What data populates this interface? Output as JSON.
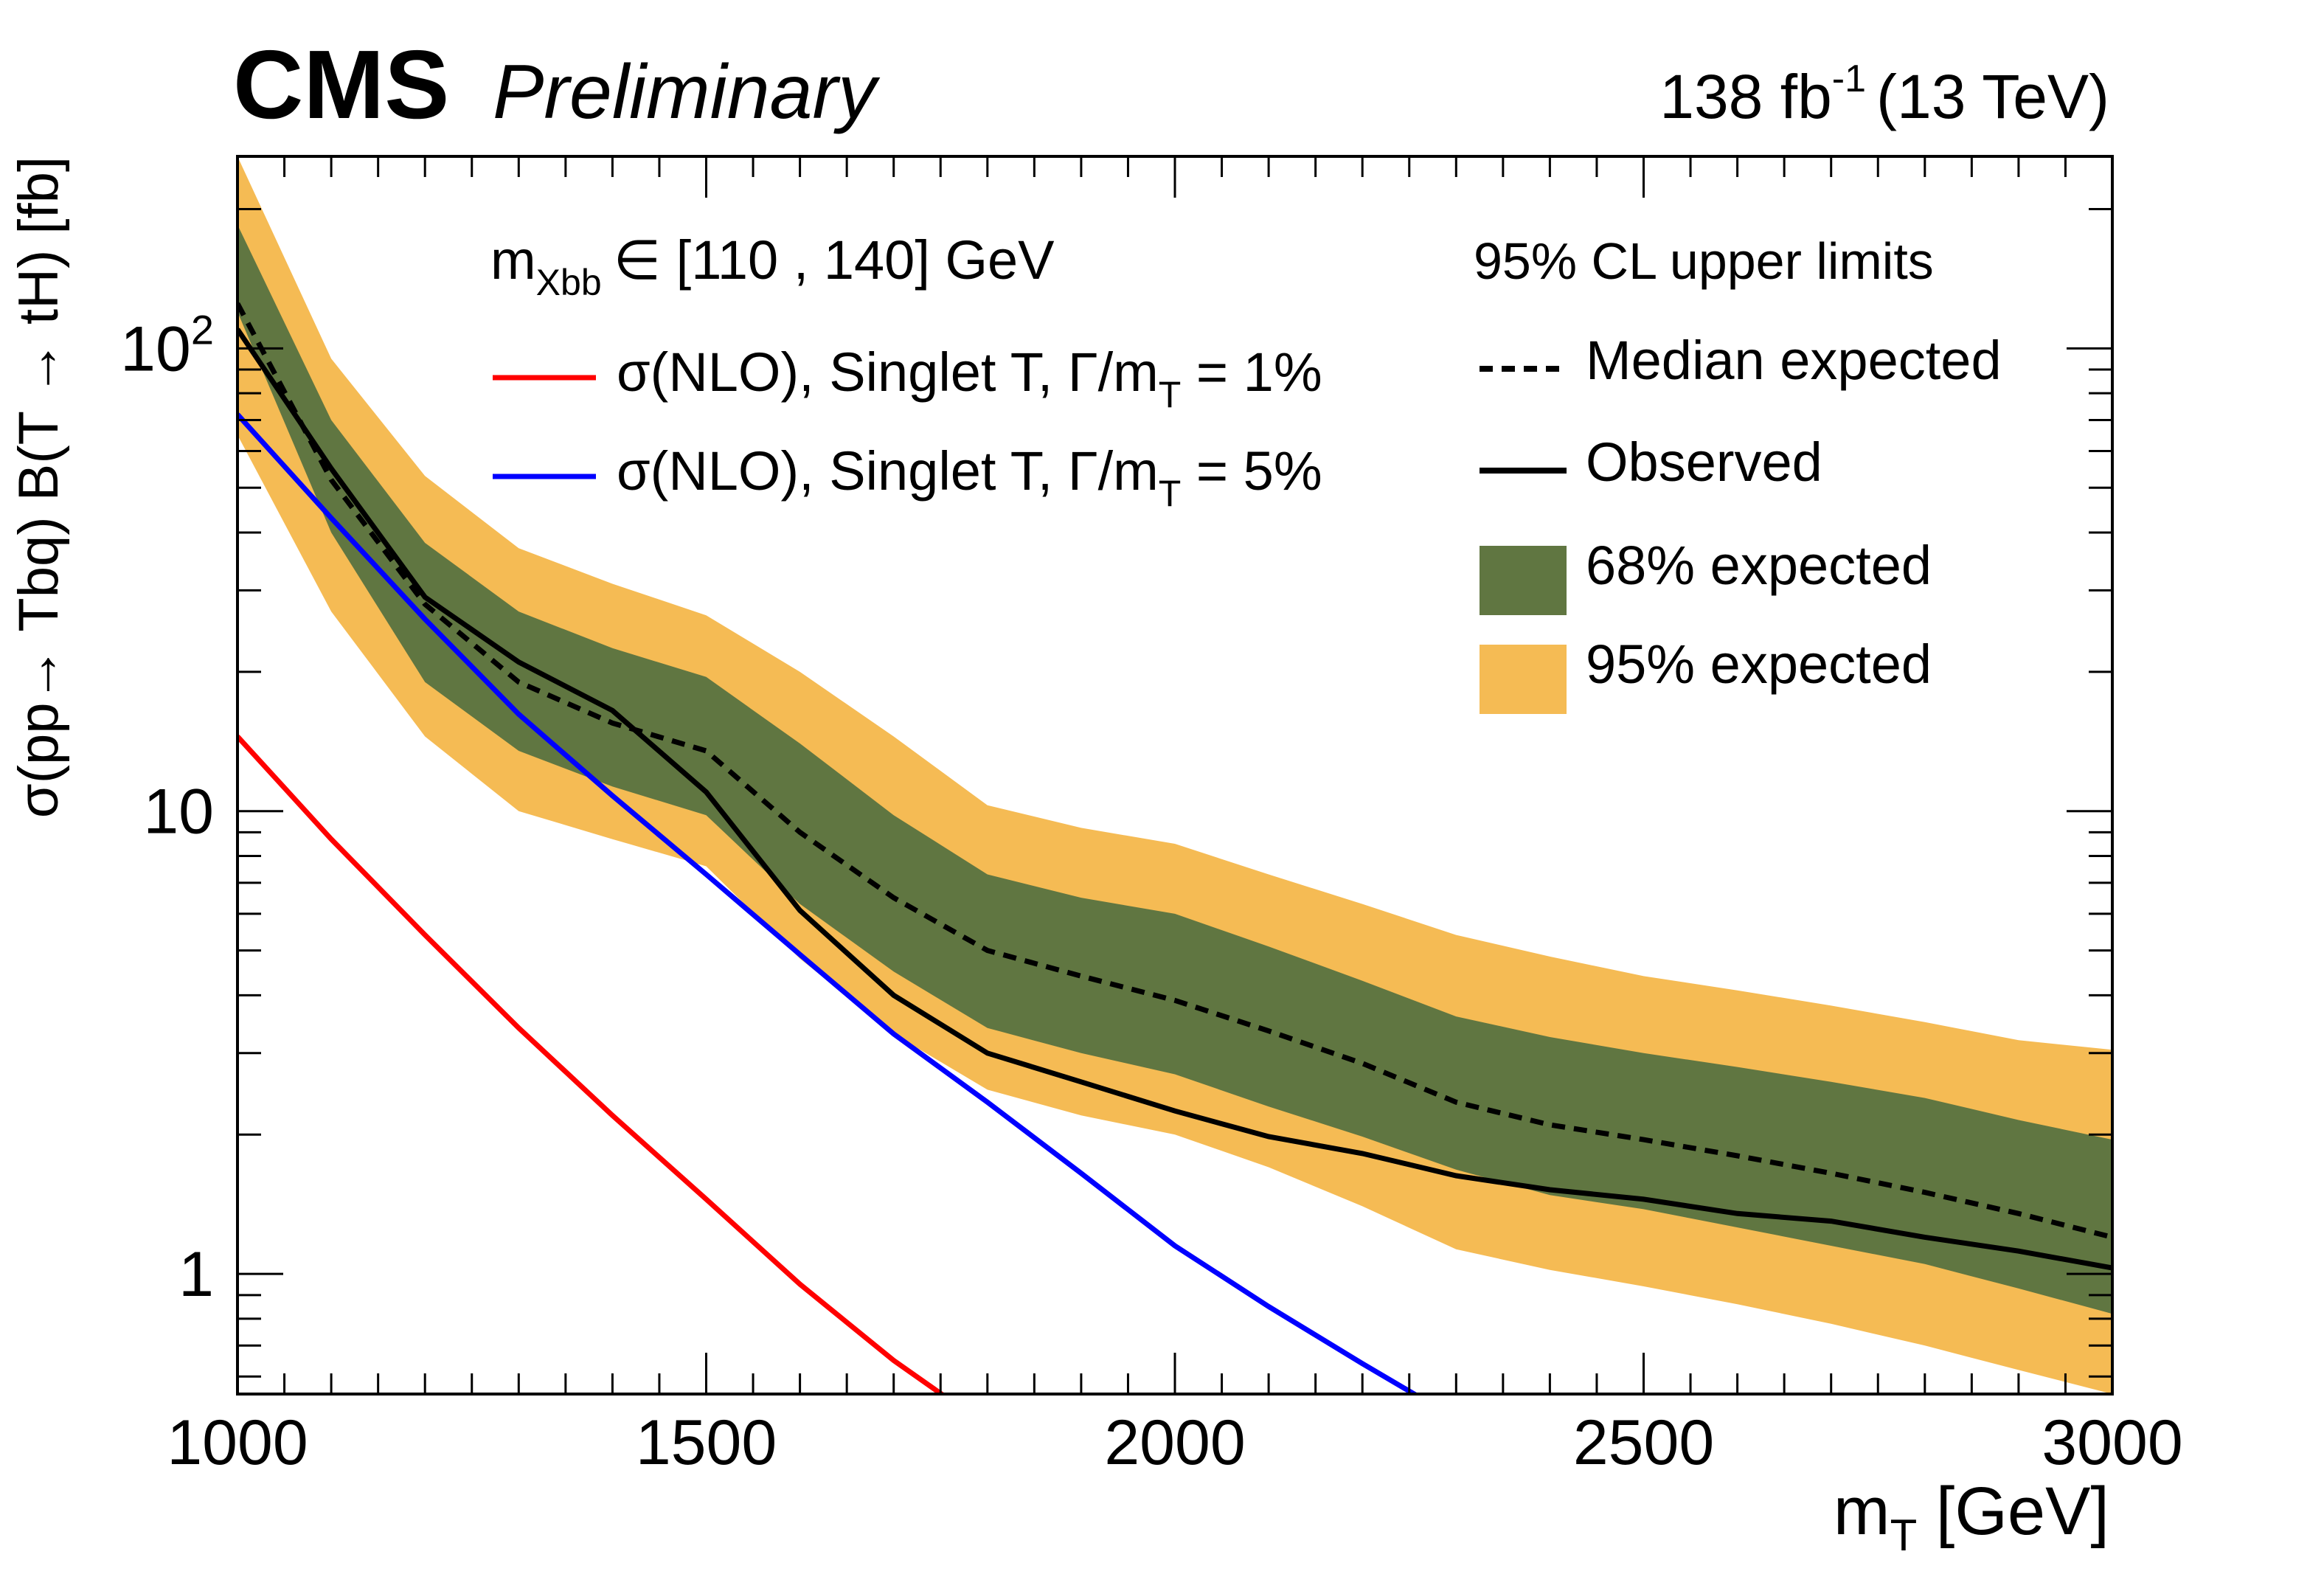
{
  "header": {
    "experiment": "CMS",
    "status": "Preliminary",
    "lumi_value": "138 fb",
    "lumi_exp": "-1",
    "energy": "(13 TeV)"
  },
  "colors": {
    "band95": "#f5bb54",
    "band68": "#607641",
    "observed": "#000000",
    "expected": "#000000",
    "theory1": "#ff0000",
    "theory5": "#0000ff"
  },
  "chart_data": {
    "type": "line",
    "title": "",
    "xlabel": {
      "main": "m",
      "sub": "T",
      "unit": " [GeV]"
    },
    "ylabel": "σ(pp→ Tbq) B(T → tH) [fb]",
    "xlim": [
      1000,
      3000
    ],
    "ylim": [
      0.55,
      260
    ],
    "yscale": "log",
    "grid": false,
    "x_ticks": [
      "1000",
      "1500",
      "2000",
      "2500",
      "3000"
    ],
    "y_ticks": {
      "one": "1",
      "ten": "10",
      "hundred_base": "10",
      "hundred_exp": "2"
    },
    "annotations": {
      "mass_window_main": "m",
      "mass_window_sub": "Xbb",
      "mass_window_rest": "∈ [110 , 140]  GeV",
      "legend_header": "95% CL upper limits"
    },
    "legend": {
      "red": {
        "prefix": "σ(NLO), Singlet T, Γ/m",
        "sub": "T",
        "suffix": " = 1%"
      },
      "blue": {
        "prefix": "σ(NLO), Singlet T, Γ/m",
        "sub": "T",
        "suffix": " = 5%"
      },
      "expected": "Median expected",
      "observed": "Observed",
      "band68": "68% expected",
      "band95": "95% expected"
    },
    "x": [
      1000,
      1100,
      1200,
      1300,
      1400,
      1500,
      1600,
      1700,
      1800,
      1900,
      2000,
      2100,
      2200,
      2300,
      2400,
      2500,
      2600,
      2700,
      2800,
      2900,
      3000
    ],
    "series": [
      {
        "name": "Median expected",
        "values": [
          125,
          52,
          28,
          19,
          15.5,
          13.5,
          9,
          6.5,
          5,
          4.4,
          3.9,
          3.35,
          2.85,
          2.35,
          2.1,
          1.95,
          1.8,
          1.65,
          1.5,
          1.35,
          1.2
        ]
      },
      {
        "name": "Observed",
        "values": [
          110,
          55,
          29,
          21,
          16.5,
          11,
          6.1,
          4,
          3,
          2.6,
          2.25,
          1.98,
          1.82,
          1.63,
          1.52,
          1.45,
          1.35,
          1.3,
          1.2,
          1.12,
          1.03
        ]
      },
      {
        "name": "68% expected",
        "lower": [
          120,
          40,
          19,
          13.5,
          11.3,
          9.8,
          6.3,
          4.5,
          3.4,
          3,
          2.7,
          2.3,
          1.98,
          1.68,
          1.48,
          1.38,
          1.26,
          1.15,
          1.05,
          0.93,
          0.82
        ],
        "upper": [
          185,
          70,
          38,
          27,
          22.5,
          19.5,
          14,
          9.8,
          7.3,
          6.5,
          6,
          5.1,
          4.3,
          3.6,
          3.25,
          3,
          2.8,
          2.6,
          2.4,
          2.15,
          1.95
        ]
      },
      {
        "name": "95% expected",
        "lower": [
          65,
          27,
          14.5,
          10,
          8.7,
          7.6,
          4.8,
          3.3,
          2.5,
          2.2,
          2,
          1.7,
          1.4,
          1.13,
          1.02,
          0.94,
          0.86,
          0.78,
          0.7,
          0.62,
          0.55
        ],
        "upper": [
          260,
          95,
          53,
          37,
          31,
          26.5,
          20,
          14.5,
          10.3,
          9.2,
          8.5,
          7.3,
          6.3,
          5.4,
          4.85,
          4.4,
          4.1,
          3.8,
          3.5,
          3.2,
          3.05
        ]
      },
      {
        "name": "σ(NLO), Singlet T, Γ/m_T = 1%",
        "x": [
          1000,
          1100,
          1200,
          1300,
          1400,
          1500,
          1600,
          1700,
          1780
        ],
        "values": [
          14.5,
          8.7,
          5.4,
          3.4,
          2.2,
          1.45,
          0.95,
          0.65,
          0.5
        ]
      },
      {
        "name": "σ(NLO), Singlet T, Γ/m_T = 5%",
        "x": [
          1000,
          1100,
          1200,
          1300,
          1400,
          1500,
          1600,
          1700,
          1800,
          1900,
          2000,
          2100,
          2200,
          2290
        ],
        "values": [
          72,
          43,
          26,
          16.2,
          10.8,
          7.3,
          4.9,
          3.3,
          2.35,
          1.65,
          1.15,
          0.85,
          0.64,
          0.5
        ]
      }
    ]
  }
}
